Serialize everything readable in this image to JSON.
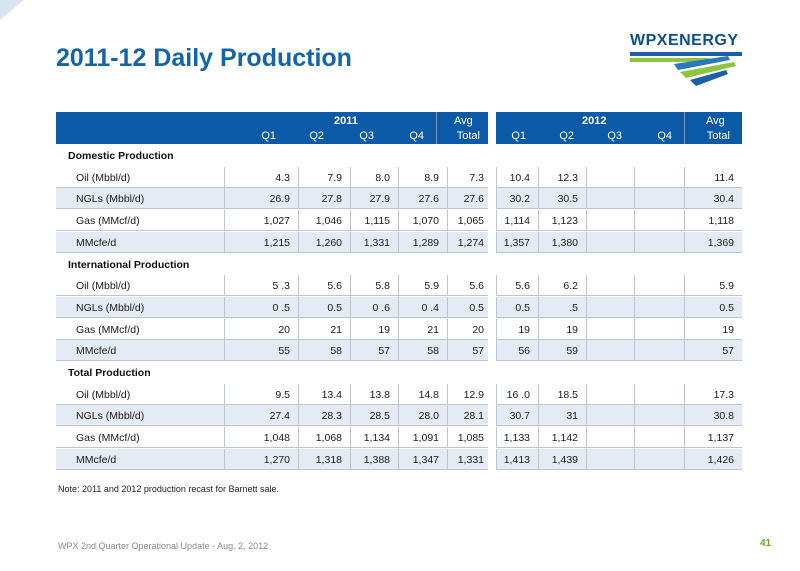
{
  "title": "2011-12 Daily Production",
  "logo": {
    "text": "WPXENERGY"
  },
  "header": {
    "left_year": "2011",
    "right_year": "2012",
    "avg_label": "Avg",
    "quarters_left": [
      "Q1",
      "Q2",
      "Q3",
      "Q4",
      "Total"
    ],
    "quarters_right": [
      "Q1",
      "Q2",
      "Q3",
      "Q4",
      "Total"
    ]
  },
  "sections": [
    {
      "title": "Domestic Production",
      "rows": [
        {
          "label": "Oil (Mbbl/d)",
          "y2011": [
            "4.3",
            "7.9",
            "8.0",
            "8.9",
            "7.3"
          ],
          "y2012": [
            "10.4",
            "12.3",
            "",
            "",
            "11.4"
          ]
        },
        {
          "label": "NGLs (Mbbl/d)",
          "y2011": [
            "26.9",
            "27.8",
            "27.9",
            "27.6",
            "27.6"
          ],
          "y2012": [
            "30.2",
            "30.5",
            "",
            "",
            "30.4"
          ]
        },
        {
          "label": "Gas (MMcf/d)",
          "y2011": [
            "1,027",
            "1,046",
            "1,115",
            "1,070",
            "1,065"
          ],
          "y2012": [
            "1,114",
            "1,123",
            "",
            "",
            "1,118"
          ]
        },
        {
          "label": "MMcfe/d",
          "y2011": [
            "1,215",
            "1,260",
            "1,331",
            "1,289",
            "1,274"
          ],
          "y2012": [
            "1,357",
            "1,380",
            "",
            "",
            "1,369"
          ]
        }
      ]
    },
    {
      "title": "International Production",
      "rows": [
        {
          "label": "Oil (Mbbl/d)",
          "y2011": [
            "5 .3",
            "5.6",
            "5.8",
            "5.9",
            "5.6"
          ],
          "y2012": [
            "5.6",
            "6.2",
            "",
            "",
            "5.9"
          ]
        },
        {
          "label": "NGLs (Mbbl/d)",
          "y2011": [
            "0 .5",
            "0.5",
            "0 .6",
            "0 .4",
            "0.5"
          ],
          "y2012": [
            "0.5",
            ".5",
            "",
            "",
            "0.5"
          ]
        },
        {
          "label": "Gas (MMcf/d)",
          "y2011": [
            "20",
            "21",
            "19",
            "21",
            "20"
          ],
          "y2012": [
            "19",
            "19",
            "",
            "",
            "19"
          ]
        },
        {
          "label": "MMcfe/d",
          "y2011": [
            "55",
            "58",
            "57",
            "58",
            "57"
          ],
          "y2012": [
            "56",
            "59",
            "",
            "",
            "57"
          ]
        }
      ]
    },
    {
      "title": "Total Production",
      "rows": [
        {
          "label": "Oil (Mbbl/d)",
          "y2011": [
            "9.5",
            "13.4",
            "13.8",
            "14.8",
            "12.9"
          ],
          "y2012": [
            "16 .0",
            "18.5",
            "",
            "",
            "17.3"
          ]
        },
        {
          "label": "NGLs (Mbbl/d)",
          "y2011": [
            "27.4",
            "28.3",
            "28.5",
            "28.0",
            "28.1"
          ],
          "y2012": [
            "30.7",
            "31",
            "",
            "",
            "30.8"
          ]
        },
        {
          "label": "Gas (MMcf/d)",
          "y2011": [
            "1,048",
            "1,068",
            "1,134",
            "1,091",
            "1,085"
          ],
          "y2012": [
            "1,133",
            "1,142",
            "",
            "",
            "1,137"
          ]
        },
        {
          "label": "MMcfe/d",
          "y2011": [
            "1,270",
            "1,318",
            "1,388",
            "1,347",
            "1,331"
          ],
          "y2012": [
            "1,413",
            "1,439",
            "",
            "",
            "1,426"
          ]
        }
      ]
    }
  ],
  "note": "Note:  2011 and 2012 production recast for Barnett sale.",
  "footer": "WPX 2nd Quarter Operational Update - Aug. 2, 2012",
  "page_number": "41",
  "colors": {
    "title": "#1464a8",
    "header_bg": "#0a5aa8",
    "row_shade": "#e5ebf4",
    "accent_green": "#6aa82a"
  }
}
